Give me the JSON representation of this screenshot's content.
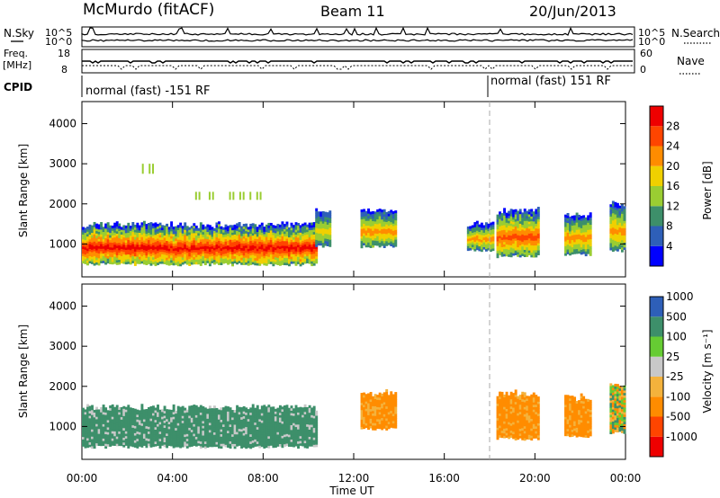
{
  "header": {
    "station": "McMurdo (fitACF)",
    "beam": "Beam 11",
    "date": "20/Jun/2013"
  },
  "noise_panel": {
    "left_label": "N.Sky",
    "left_ticks": [
      "10^5",
      "10^0"
    ],
    "right_label": "N.Search",
    "right_ticks": [
      "10^5",
      "10^0"
    ]
  },
  "freq_panel": {
    "left_label_1": "Freq.",
    "left_label_2": "[MHz]",
    "left_ticks": [
      "18",
      "8"
    ],
    "right_label": "Nave",
    "right_ticks": [
      "60",
      "0"
    ]
  },
  "cpid_panel": {
    "label": "CPID",
    "segments": [
      {
        "text": "normal (fast) -151 RF",
        "start_hour": 0
      },
      {
        "text": "normal (fast) 151 RF",
        "start_hour": 18
      }
    ]
  },
  "x_axis": {
    "label": "Time UT",
    "ticks": [
      "00:00",
      "04:00",
      "08:00",
      "12:00",
      "16:00",
      "20:00",
      "00:00"
    ]
  },
  "colors": {
    "power_scale": [
      "#0000ff",
      "#2e5fb8",
      "#3d8f6a",
      "#9acd32",
      "#f0d000",
      "#ff8c00",
      "#ff4500",
      "#ee0000"
    ],
    "velocity_scale": [
      "#ee0000",
      "#ff4500",
      "#ff8c00",
      "#f4b23c",
      "#c8c8c8",
      "#66cc33",
      "#3d8f6a",
      "#2e5fb8"
    ]
  },
  "chart_data": [
    {
      "type": "heatmap",
      "panel": "power",
      "ylabel": "Slant Range [km]",
      "yticks": [
        1000,
        2000,
        3000,
        4000
      ],
      "ylim": [
        180,
        4550
      ],
      "xlim_hours": [
        0,
        24
      ],
      "colorbar": {
        "label": "Power [dB]",
        "ticks": [
          "4",
          "8",
          "12",
          "16",
          "20",
          "24",
          "28"
        ]
      },
      "regions": [
        {
          "t": [
            0.0,
            10.3
          ],
          "r": [
            450,
            1450
          ],
          "level": 5
        },
        {
          "t": [
            10.3,
            10.9
          ],
          "r": [
            900,
            1800
          ],
          "level": 2
        },
        {
          "t": [
            12.3,
            13.8
          ],
          "r": [
            900,
            1800
          ],
          "level": 3
        },
        {
          "t": [
            17.0,
            18.2
          ],
          "r": [
            800,
            1500
          ],
          "level": 3
        },
        {
          "t": [
            18.3,
            20.2
          ],
          "r": [
            650,
            1800
          ],
          "level": 4
        },
        {
          "t": [
            21.3,
            22.5
          ],
          "r": [
            700,
            1700
          ],
          "level": 3
        },
        {
          "t": [
            23.3,
            24.0
          ],
          "r": [
            800,
            2000
          ],
          "level": 3
        }
      ],
      "features": [
        {
          "t": [
            2.5,
            3.3
          ],
          "r": [
            2750,
            3000
          ],
          "level": 2
        },
        {
          "t": [
            5.0,
            8.0
          ],
          "r": [
            2100,
            2300
          ],
          "level": 2
        }
      ]
    },
    {
      "type": "heatmap",
      "panel": "velocity",
      "ylabel": "Slant Range [km]",
      "yticks": [
        1000,
        2000,
        3000,
        4000
      ],
      "ylim": [
        180,
        4550
      ],
      "xlim_hours": [
        0,
        24
      ],
      "colorbar": {
        "label": "Velocity [m s⁻¹]",
        "ticks": [
          "-1000",
          "-500",
          "-100",
          "-25",
          "25",
          "100",
          "500",
          "1000"
        ]
      },
      "regions": [
        {
          "t": [
            0.0,
            10.3
          ],
          "r": [
            450,
            1450
          ],
          "class": "toward"
        },
        {
          "t": [
            12.3,
            13.8
          ],
          "r": [
            900,
            1800
          ],
          "class": "away"
        },
        {
          "t": [
            18.3,
            20.2
          ],
          "r": [
            650,
            1800
          ],
          "class": "away"
        },
        {
          "t": [
            21.3,
            22.5
          ],
          "r": [
            700,
            1700
          ],
          "class": "away"
        },
        {
          "t": [
            23.3,
            24.0
          ],
          "r": [
            800,
            2000
          ],
          "class": "mixed"
        }
      ]
    }
  ]
}
